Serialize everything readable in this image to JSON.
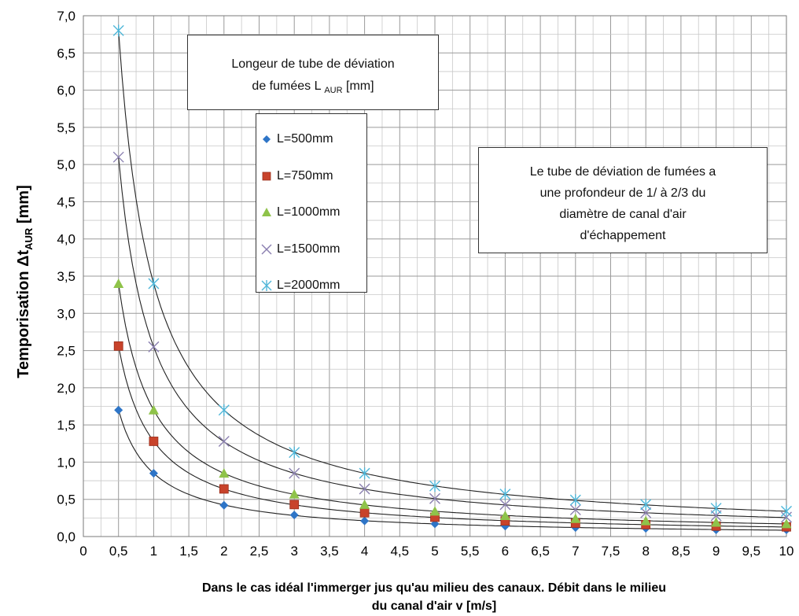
{
  "chart_data": {
    "type": "scatter",
    "ylabel_main": "Temporisation  Δt",
    "ylabel_sub": "AUR",
    "ylabel_unit": " [mm]",
    "xlabel_line1": "Dans le cas idéal l'immerger jus qu'au milieu des canaux. Débit dans le milieu",
    "xlabel_line2": "du canal d'air v [m/s]",
    "xlim": [
      0,
      10
    ],
    "ylim": [
      0,
      7
    ],
    "x_ticks": [
      "0",
      "0,5",
      "1",
      "1,5",
      "2",
      "2,5",
      "3",
      "3,5",
      "4",
      "4,5",
      "5",
      "5,5",
      "6",
      "6,5",
      "7",
      "7,5",
      "8",
      "8,5",
      "9",
      "9,5",
      "10"
    ],
    "y_ticks": [
      "0,0",
      "0,5",
      "1,0",
      "1,5",
      "2,0",
      "2,5",
      "3,0",
      "3,5",
      "4,0",
      "4,5",
      "5,0",
      "5,5",
      "6,0",
      "6,5",
      "7,0"
    ],
    "grid": true,
    "x": [
      0.5,
      1,
      2,
      3,
      4,
      5,
      6,
      7,
      8,
      9,
      10
    ],
    "series": [
      {
        "name": "L=500mm",
        "marker": "diamond",
        "color": "#2e75c7",
        "values": [
          1.7,
          0.85,
          0.42,
          0.29,
          0.21,
          0.17,
          0.14,
          0.12,
          0.11,
          0.09,
          0.09
        ]
      },
      {
        "name": "L=750mm",
        "marker": "square",
        "color": "#c8432b",
        "values": [
          2.56,
          1.28,
          0.64,
          0.43,
          0.32,
          0.26,
          0.21,
          0.18,
          0.16,
          0.14,
          0.13
        ]
      },
      {
        "name": "L=1000mm",
        "marker": "triangle",
        "color": "#8fc34a",
        "values": [
          3.4,
          1.7,
          0.85,
          0.57,
          0.43,
          0.34,
          0.28,
          0.24,
          0.21,
          0.19,
          0.17
        ]
      },
      {
        "name": "L=1500mm",
        "marker": "x",
        "color": "#8a7fb0",
        "values": [
          5.1,
          2.55,
          1.28,
          0.85,
          0.64,
          0.51,
          0.43,
          0.36,
          0.32,
          0.28,
          0.26
        ]
      },
      {
        "name": "L=2000mm",
        "marker": "asterisk",
        "color": "#4fb6d8",
        "values": [
          6.8,
          3.4,
          1.7,
          1.13,
          0.85,
          0.68,
          0.57,
          0.49,
          0.43,
          0.38,
          0.34
        ]
      }
    ],
    "legend_title_line1": "Longeur de tube de déviation",
    "legend_title_line2": "de fumées L",
    "legend_title_sub": "AUR",
    "legend_title_unit": " [mm]",
    "annotation_lines": [
      "Le tube de déviation de fumées a",
      "une profondeur de 1/ à 2/3 du",
      "diamètre de canal d'air",
      "d'échappement"
    ],
    "trendline_color": "#222222"
  }
}
